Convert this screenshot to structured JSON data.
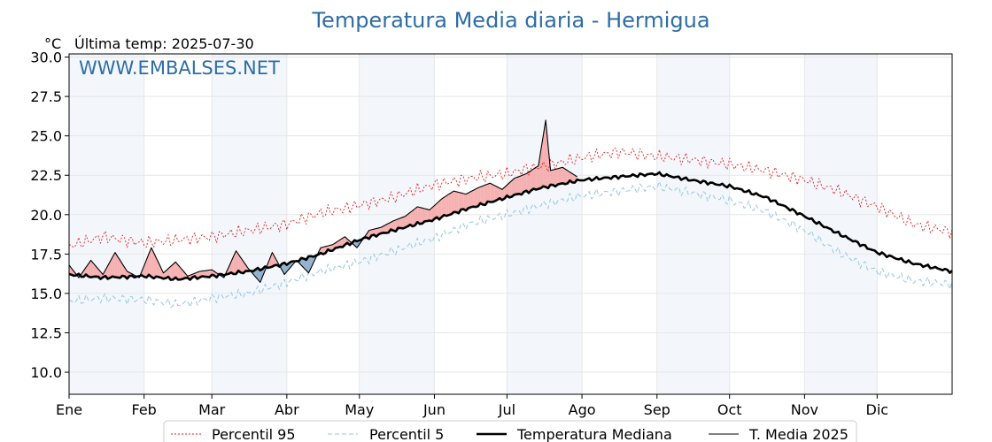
{
  "chart_data": {
    "type": "line",
    "title": "Temperatura Media diaria - Hermigua",
    "unit": "°C",
    "last_update": "Última temp: 2025-07-30",
    "watermark": "WWW.EMBALSES.NET",
    "x_ticks": [
      "Ene",
      "Feb",
      "Mar",
      "Abr",
      "May",
      "Jun",
      "Jul",
      "Ago",
      "Sep",
      "Oct",
      "Nov",
      "Dic"
    ],
    "y_ticks": [
      "10.0",
      "12.5",
      "15.0",
      "17.5",
      "20.0",
      "22.5",
      "25.0",
      "27.5",
      "30.0"
    ],
    "ylim": [
      8.6,
      30.2
    ],
    "xlim": [
      1,
      366
    ],
    "grid": true,
    "legend_position": "bottom",
    "series": [
      {
        "name": "Percentil 95",
        "color": "#e41a1c",
        "style": "dotted",
        "x": [
          1,
          15,
          32,
          46,
          60,
          75,
          91,
          105,
          121,
          135,
          152,
          166,
          182,
          190,
          198,
          213,
          228,
          244,
          258,
          274,
          289,
          305,
          319,
          335,
          350,
          366
        ],
        "values": [
          18.0,
          18.6,
          18.2,
          18.4,
          18.6,
          19.0,
          19.4,
          20.1,
          20.6,
          21.1,
          21.9,
          22.3,
          22.6,
          22.9,
          23.1,
          23.6,
          24.0,
          23.7,
          23.5,
          23.2,
          22.8,
          22.2,
          21.5,
          20.5,
          19.4,
          18.9
        ]
      },
      {
        "name": "Percentil 5",
        "color": "#9ecae1",
        "style": "dashed",
        "x": [
          1,
          15,
          32,
          46,
          60,
          75,
          91,
          105,
          121,
          135,
          152,
          166,
          182,
          196,
          213,
          228,
          244,
          258,
          274,
          289,
          305,
          319,
          335,
          350,
          366
        ],
        "values": [
          14.5,
          14.7,
          14.6,
          14.3,
          14.7,
          15.0,
          15.7,
          16.4,
          17.0,
          17.7,
          18.5,
          19.4,
          20.0,
          20.6,
          21.2,
          21.5,
          21.8,
          21.4,
          20.9,
          20.2,
          19.0,
          17.6,
          16.4,
          15.8,
          15.6
        ]
      },
      {
        "name": "Temperatura Mediana",
        "color": "#000000",
        "style": "thick",
        "x": [
          1,
          15,
          32,
          46,
          60,
          75,
          91,
          105,
          121,
          135,
          152,
          166,
          182,
          196,
          213,
          228,
          244,
          258,
          274,
          289,
          305,
          319,
          335,
          350,
          366
        ],
        "values": [
          16.2,
          16.0,
          16.1,
          15.9,
          16.1,
          16.4,
          16.9,
          17.5,
          18.4,
          19.0,
          19.7,
          20.4,
          21.1,
          21.7,
          22.2,
          22.4,
          22.6,
          22.2,
          21.8,
          21.1,
          19.9,
          18.8,
          17.6,
          16.9,
          16.4
        ]
      },
      {
        "name": "T. Media 2025",
        "color": "#000000",
        "style": "thin",
        "x": [
          1,
          5,
          10,
          15,
          20,
          25,
          30,
          35,
          40,
          45,
          50,
          55,
          60,
          65,
          70,
          75,
          80,
          85,
          90,
          95,
          100,
          105,
          110,
          115,
          120,
          125,
          130,
          135,
          140,
          145,
          150,
          155,
          160,
          165,
          170,
          175,
          180,
          185,
          190,
          195,
          198,
          200,
          205,
          211
        ],
        "values": [
          16.8,
          16.0,
          17.1,
          16.2,
          17.6,
          16.4,
          16.0,
          17.9,
          16.3,
          17.0,
          16.1,
          16.4,
          16.5,
          16.0,
          17.7,
          16.6,
          15.7,
          17.6,
          16.2,
          17.1,
          16.3,
          17.9,
          18.1,
          18.6,
          17.9,
          19.0,
          19.2,
          19.6,
          19.9,
          20.5,
          20.3,
          21.0,
          21.5,
          21.3,
          21.7,
          22.0,
          21.6,
          22.3,
          22.6,
          23.1,
          26.0,
          22.8,
          23.0,
          22.4
        ]
      }
    ]
  }
}
